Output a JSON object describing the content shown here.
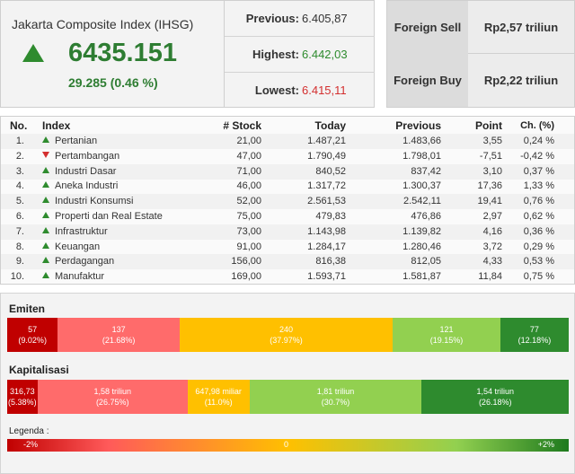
{
  "index": {
    "title": "Jakarta Composite Index (IHSG)",
    "value": "6435.151",
    "change": "29.285 (0.46 %)",
    "direction_icon": "triangle-up-icon"
  },
  "stats": [
    {
      "label": "Previous:",
      "value": "6.405,87",
      "color": "#333333"
    },
    {
      "label": "Highest:",
      "value": "6.442,03",
      "color": "#2e8b2e"
    },
    {
      "label": "Lowest:",
      "value": "6.415,11",
      "color": "#d32f2f"
    }
  ],
  "foreign": [
    {
      "label": "Foreign Sell",
      "value": "Rp2,57 triliun"
    },
    {
      "label": "Foreign Buy",
      "value": "Rp2,22 triliun"
    }
  ],
  "table": {
    "headers": {
      "no": "No.",
      "index": "Index",
      "stock": "# Stock",
      "today": "Today",
      "previous": "Previous",
      "point": "Point",
      "change": "Ch. (%)"
    },
    "rows": [
      {
        "no": "1.",
        "dir": "up",
        "index": "Pertanian",
        "stock": "21,00",
        "today": "1.487,21",
        "previous": "1.483,66",
        "point": "3,55",
        "change": "0,24 %"
      },
      {
        "no": "2.",
        "dir": "down",
        "index": "Pertambangan",
        "stock": "47,00",
        "today": "1.790,49",
        "previous": "1.798,01",
        "point": "-7,51",
        "change": "-0,42 %"
      },
      {
        "no": "3.",
        "dir": "up",
        "index": "Industri Dasar",
        "stock": "71,00",
        "today": "840,52",
        "previous": "837,42",
        "point": "3,10",
        "change": "0,37 %"
      },
      {
        "no": "4.",
        "dir": "up",
        "index": "Aneka Industri",
        "stock": "46,00",
        "today": "1.317,72",
        "previous": "1.300,37",
        "point": "17,36",
        "change": "1,33 %"
      },
      {
        "no": "5.",
        "dir": "up",
        "index": "Industri Konsumsi",
        "stock": "52,00",
        "today": "2.561,53",
        "previous": "2.542,11",
        "point": "19,41",
        "change": "0,76 %"
      },
      {
        "no": "6.",
        "dir": "up",
        "index": "Properti dan Real Estate",
        "stock": "75,00",
        "today": "479,83",
        "previous": "476,86",
        "point": "2,97",
        "change": "0,62 %"
      },
      {
        "no": "7.",
        "dir": "up",
        "index": "Infrastruktur",
        "stock": "73,00",
        "today": "1.143,98",
        "previous": "1.139,82",
        "point": "4,16",
        "change": "0,36 %"
      },
      {
        "no": "8.",
        "dir": "up",
        "index": "Keuangan",
        "stock": "91,00",
        "today": "1.284,17",
        "previous": "1.280,46",
        "point": "3,72",
        "change": "0,29 %"
      },
      {
        "no": "9.",
        "dir": "up",
        "index": "Perdagangan",
        "stock": "156,00",
        "today": "816,38",
        "previous": "812,05",
        "point": "4,33",
        "change": "0,53 %"
      },
      {
        "no": "10.",
        "dir": "up",
        "index": "Manufaktur",
        "stock": "169,00",
        "today": "1.593,71",
        "previous": "1.581,87",
        "point": "11,84",
        "change": "0,75 %"
      }
    ]
  },
  "emiten": {
    "title": "Emiten",
    "segments": [
      {
        "value": "57",
        "pct": "(9.02%)",
        "share": 9.02,
        "color": "#c00000"
      },
      {
        "value": "137",
        "pct": "(21.68%)",
        "share": 21.68,
        "color": "#ff6b6b"
      },
      {
        "value": "240",
        "pct": "(37.97%)",
        "share": 37.97,
        "color": "#ffc000"
      },
      {
        "value": "121",
        "pct": "(19.15%)",
        "share": 19.15,
        "color": "#92d050"
      },
      {
        "value": "77",
        "pct": "(12.18%)",
        "share": 12.18,
        "color": "#2e8b2e"
      }
    ]
  },
  "kapitalisasi": {
    "title": "Kapitalisasi",
    "segments": [
      {
        "value": "316,73",
        "pct": "(5.38%)",
        "share": 5.38,
        "color": "#c00000"
      },
      {
        "value": "1,58 triliun",
        "pct": "(26.75%)",
        "share": 26.75,
        "color": "#ff6b6b"
      },
      {
        "value": "647,98 miliar",
        "pct": "(11.0%)",
        "share": 11.0,
        "color": "#ffc000"
      },
      {
        "value": "1,81 triliun",
        "pct": "(30.7%)",
        "share": 30.7,
        "color": "#92d050"
      },
      {
        "value": "1,54 triliun",
        "pct": "(26.18%)",
        "share": 26.18,
        "color": "#2e8b2e"
      }
    ]
  },
  "legend": {
    "title": "Legenda :",
    "min": "-2%",
    "mid": "0",
    "max": "+2%"
  }
}
